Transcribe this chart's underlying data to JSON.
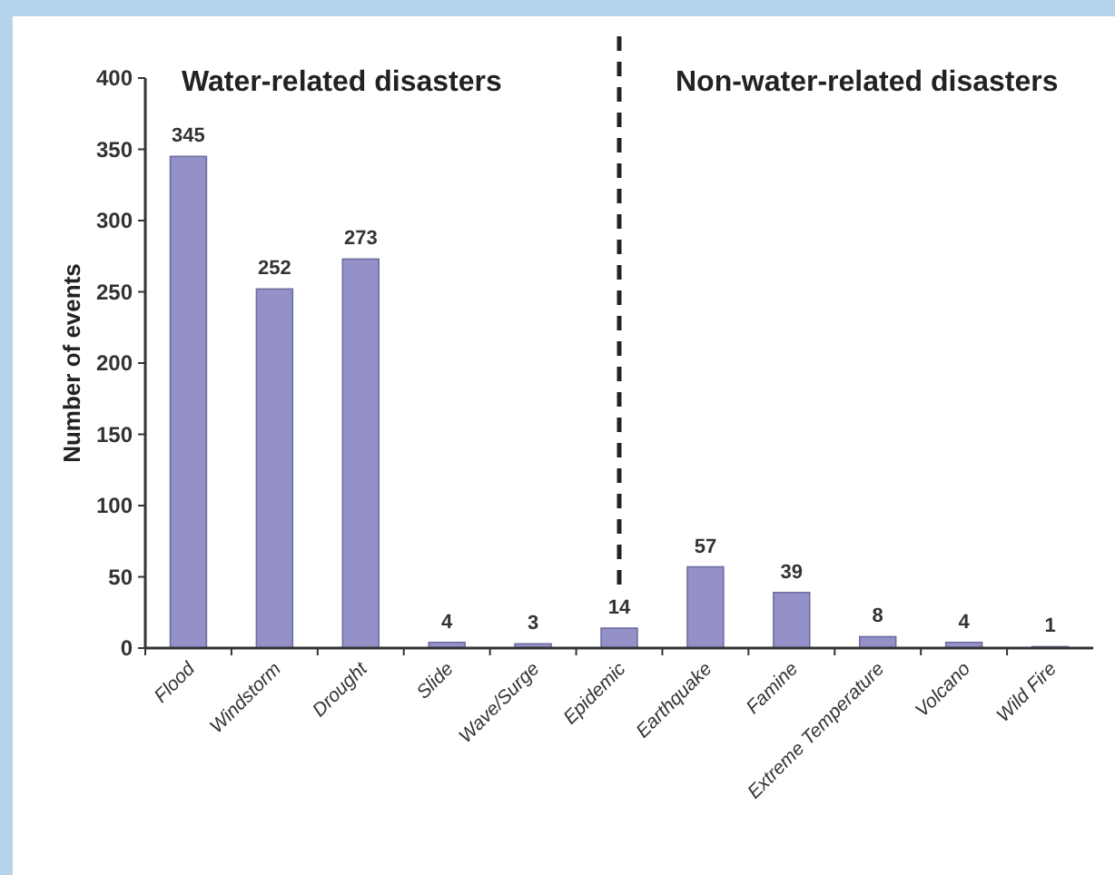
{
  "chart_data": {
    "type": "bar",
    "ylabel": "Number of events",
    "categories": [
      "Flood",
      "Windstorm",
      "Drought",
      "Slide",
      "Wave/Surge",
      "Epidemic",
      "Earthquake",
      "Famine",
      "Extreme Temperature",
      "Volcano",
      "Wild Fire"
    ],
    "values": [
      345,
      252,
      273,
      4,
      3,
      14,
      57,
      39,
      8,
      4,
      1
    ],
    "color": "#9391c8",
    "ylim": [
      0,
      400
    ],
    "yticks": [
      0,
      50,
      100,
      150,
      200,
      250,
      300,
      350,
      400
    ],
    "data_labels": true,
    "ref_lines": [
      {
        "axis": "x",
        "value": "Epidemic",
        "line_style": "dashed",
        "color": "#222222"
      }
    ],
    "annotations": [
      "Water-related disasters",
      "Non-water-related disasters"
    ]
  }
}
